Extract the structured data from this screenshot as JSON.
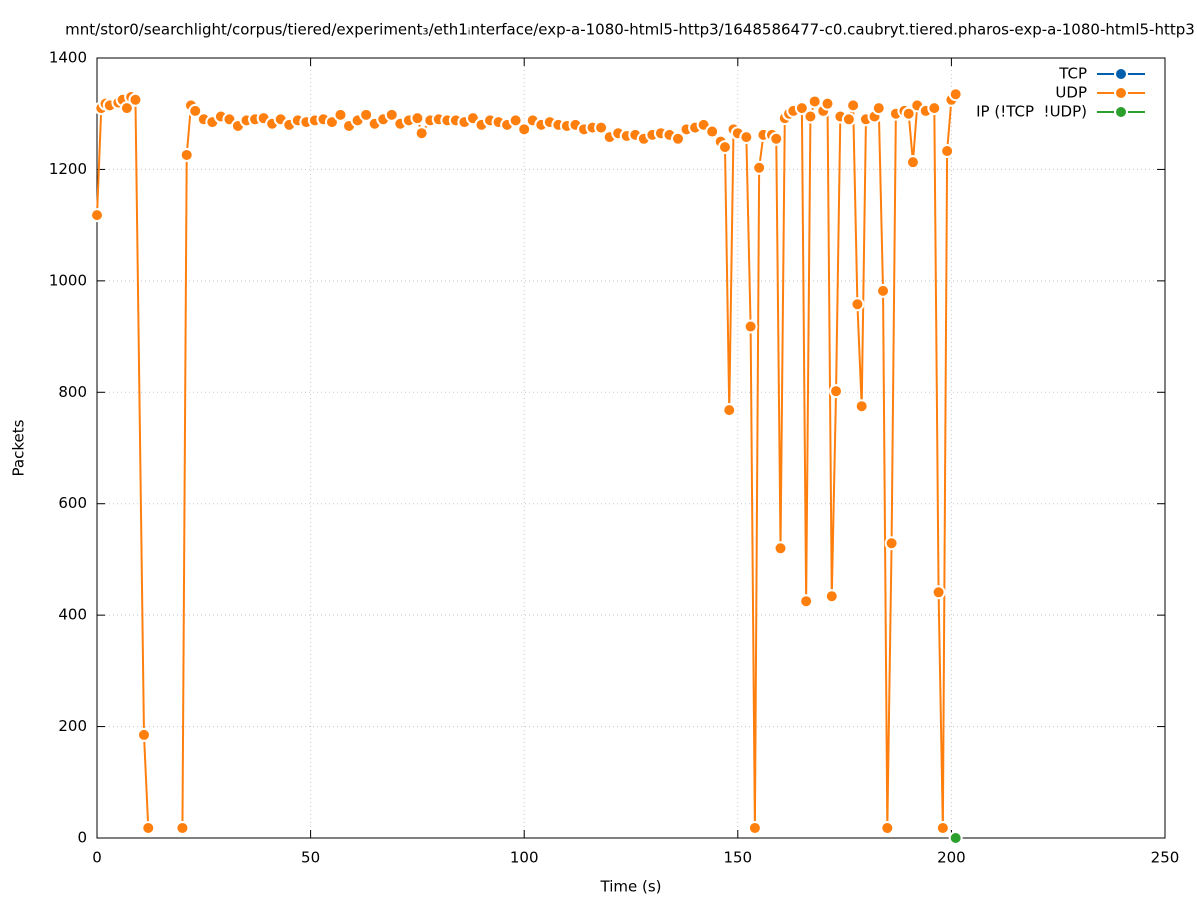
{
  "chart_data": {
    "type": "line",
    "title": "mnt/stor0/searchlight/corpus/tiered/experiment₃/eth1ᵢnterface/exp-a-1080-html5-http3/1648586477-c0.caubryt.tiered.pharos-exp-a-1080-html5-http3",
    "x_label": "Time (s)",
    "y_label": "Packets",
    "xlim": [
      0,
      250
    ],
    "xticks": [
      0,
      50,
      100,
      150,
      200,
      250
    ],
    "ylim": [
      0,
      1400
    ],
    "yticks": [
      0,
      200,
      400,
      600,
      800,
      1000,
      1200,
      1400
    ],
    "grid": true,
    "legend": "top-right",
    "series": [
      {
        "name": "TCP",
        "color": "#0060ad",
        "x": [],
        "values": []
      },
      {
        "name": "UDP",
        "color": "#ff7f0e",
        "x": [
          0,
          1,
          2,
          3,
          5,
          6,
          7,
          8,
          9,
          11,
          12,
          16,
          20,
          21,
          22,
          23,
          25,
          27,
          29,
          31,
          33,
          35,
          37,
          39,
          41,
          43,
          45,
          47,
          49,
          51,
          53,
          55,
          57,
          59,
          61,
          63,
          65,
          67,
          69,
          71,
          73,
          75,
          76,
          78,
          80,
          82,
          84,
          86,
          88,
          90,
          92,
          94,
          96,
          98,
          100,
          102,
          104,
          106,
          108,
          110,
          112,
          114,
          116,
          118,
          120,
          122,
          124,
          126,
          128,
          130,
          132,
          134,
          136,
          138,
          140,
          142,
          144,
          146,
          147,
          148,
          149,
          150,
          152,
          153,
          154,
          155,
          156,
          158,
          159,
          160,
          161,
          162,
          163,
          165,
          166,
          167,
          168,
          170,
          171,
          172,
          173,
          174,
          176,
          177,
          178,
          179,
          180,
          182,
          183,
          184,
          185,
          186,
          187,
          189,
          190,
          191,
          192,
          194,
          196,
          197,
          198,
          199,
          200,
          201
        ],
        "values": [
          1118,
          1310,
          1318,
          1315,
          1320,
          1325,
          1310,
          1330,
          1325,
          185,
          18,
          null,
          18,
          1226,
          1315,
          1305,
          1290,
          1285,
          1295,
          1290,
          1278,
          1288,
          1290,
          1292,
          1282,
          1290,
          1280,
          1288,
          1285,
          1288,
          1290,
          1285,
          1298,
          1278,
          1288,
          1298,
          1282,
          1290,
          1298,
          1282,
          1288,
          1292,
          1265,
          1288,
          1290,
          1288,
          1288,
          1285,
          1292,
          1280,
          1288,
          1285,
          1280,
          1288,
          1272,
          1288,
          1280,
          1285,
          1280,
          1278,
          1280,
          1272,
          1275,
          1275,
          1258,
          1265,
          1260,
          1262,
          1255,
          1262,
          1265,
          1262,
          1255,
          1272,
          1275,
          1280,
          1268,
          1250,
          1240,
          768,
          1272,
          1265,
          1258,
          918,
          18,
          1203,
          1262,
          1262,
          1255,
          520,
          1292,
          1300,
          1305,
          1310,
          425,
          1295,
          1322,
          1305,
          1318,
          434,
          802,
          1295,
          1290,
          1315,
          958,
          775,
          1290,
          1295,
          1310,
          982,
          18,
          529,
          1300,
          1305,
          1300,
          1213,
          1315,
          1305,
          1310,
          441,
          18,
          1233,
          1325,
          1335
        ]
      },
      {
        "name": "IP (!TCP  !UDP)",
        "color": "#2ca02c",
        "x": [
          201
        ],
        "values": [
          0
        ]
      }
    ]
  }
}
